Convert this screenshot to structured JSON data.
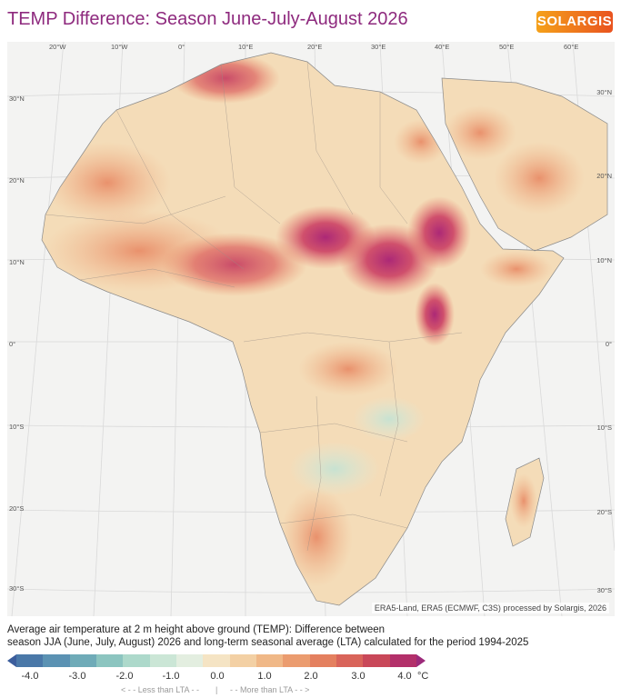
{
  "header": {
    "title": "TEMP Difference: Season June-July-August 2026",
    "logo_text": "SOLARGIS"
  },
  "map": {
    "lon_labels": [
      "20°W",
      "10°W",
      "0°",
      "10°E",
      "20°E",
      "30°E",
      "40°E",
      "50°E",
      "60°E"
    ],
    "lat_labels_left": [
      "30°N",
      "20°N",
      "10°N",
      "0°",
      "10°S",
      "20°S",
      "30°S"
    ],
    "lat_labels_right": [
      "30°N",
      "20°N",
      "10°N",
      "0°",
      "10°S",
      "20°S",
      "30°S"
    ],
    "credit": "ERA5-Land, ERA5 (ECMWF, C3S) processed by Solargis, 2026",
    "colors": {
      "hot_max": "#b3236e",
      "hot_strong": "#d0455e",
      "warm": "#e98a64",
      "mild": "#f2b588",
      "neutral": "#f4dcb8",
      "cool": "#cfe7dc",
      "sea": "#f3f3f2"
    }
  },
  "description": {
    "line1": "Average air temperature at 2 m height above ground (TEMP): Difference between",
    "line2": "season JJA (June, July, August) 2026 and long-term seasonal average (LTA) calculated for the period 1994-2025"
  },
  "legend": {
    "ticks": [
      "-4.0",
      "-3.0",
      "-2.0",
      "-1.0",
      "0.0",
      "1.0",
      "2.0",
      "3.0",
      "4.0"
    ],
    "unit": "°C",
    "hint_less": "< - - Less than LTA - -",
    "hint_sep": "|",
    "hint_more": "- - More than LTA - - >",
    "colors": [
      "#3b5d9c",
      "#4a78a8",
      "#5b92b3",
      "#6fabb8",
      "#8cc5c0",
      "#add9cb",
      "#cbe6d6",
      "#e3eee0",
      "#f5e4c4",
      "#f3d0a4",
      "#f0b887",
      "#eb9c6f",
      "#e4805f",
      "#d9645a",
      "#c94859",
      "#b3306a",
      "#9c2a7a"
    ]
  }
}
